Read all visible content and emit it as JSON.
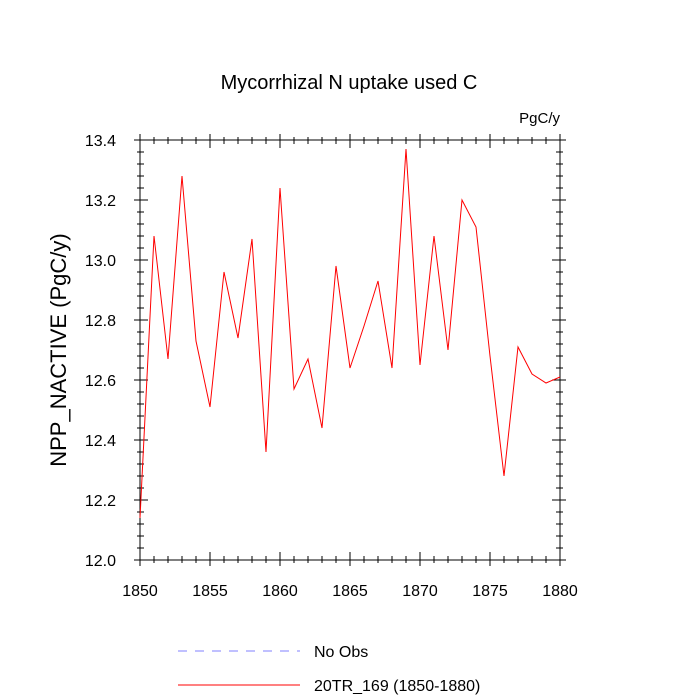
{
  "chart_data": {
    "type": "line",
    "title": "Mycorrhizal N uptake used C",
    "units_label": "PgC/y",
    "ylabel": "NPP_NACTIVE  (PgC/y)",
    "xlabel": "",
    "xlim": [
      1850,
      1880
    ],
    "ylim": [
      12.0,
      13.4
    ],
    "x_ticks": [
      1850,
      1855,
      1860,
      1865,
      1870,
      1875,
      1880
    ],
    "y_ticks": [
      12.0,
      12.2,
      12.4,
      12.6,
      12.8,
      13.0,
      13.2,
      13.4
    ],
    "y_tick_labels": [
      "12.0",
      "12.2",
      "12.4",
      "12.6",
      "12.8",
      "13.0",
      "13.2",
      "13.4"
    ],
    "series": [
      {
        "name": "20TR_169 (1850-1880)",
        "color": "#ff0000",
        "style": "solid",
        "x": [
          1850,
          1851,
          1852,
          1853,
          1854,
          1855,
          1856,
          1857,
          1858,
          1859,
          1860,
          1861,
          1862,
          1863,
          1864,
          1865,
          1866,
          1867,
          1868,
          1869,
          1870,
          1871,
          1872,
          1873,
          1874,
          1875,
          1876,
          1877,
          1878,
          1879,
          1880
        ],
        "values": [
          12.14,
          13.08,
          12.67,
          13.28,
          12.73,
          12.51,
          12.96,
          12.74,
          13.07,
          12.36,
          13.24,
          12.57,
          12.67,
          12.44,
          12.98,
          12.64,
          12.78,
          12.93,
          12.64,
          13.37,
          12.65,
          13.08,
          12.7,
          13.2,
          13.11,
          12.68,
          12.28,
          12.71,
          12.62,
          12.59,
          12.61
        ]
      }
    ],
    "legend": [
      {
        "label": "No Obs",
        "color": "#8080ff",
        "style": "dashed"
      },
      {
        "label": "20TR_169 (1850-1880)",
        "color": "#ff0000",
        "style": "solid"
      }
    ],
    "legend_position": "bottom-center",
    "grid": false
  }
}
